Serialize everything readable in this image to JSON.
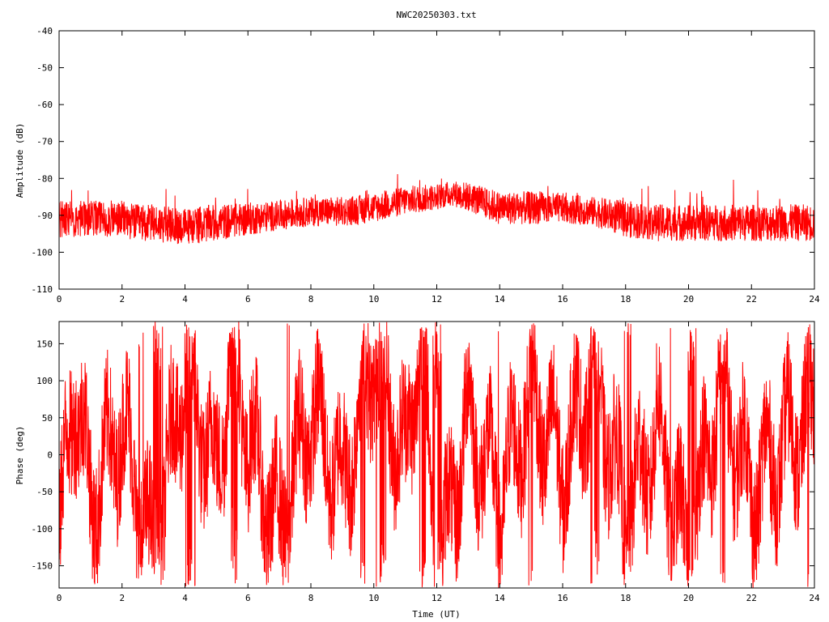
{
  "title": "NWC20250303.txt",
  "colors": {
    "trace": "#ff0000",
    "axis": "#000000",
    "background": "#ffffff"
  },
  "chart_data": [
    {
      "type": "line",
      "title": "NWC20250303.txt",
      "xlabel": "",
      "ylabel": "Amplitude (dB)",
      "xlim": [
        0,
        24
      ],
      "ylim": [
        -110,
        -40
      ],
      "x_ticks": [
        0,
        2,
        4,
        6,
        8,
        10,
        12,
        14,
        16,
        18,
        20,
        22,
        24
      ],
      "y_ticks": [
        -110,
        -100,
        -90,
        -80,
        -70,
        -60,
        -50,
        -40
      ],
      "grid": false,
      "series": [
        {
          "color": "#ff0000",
          "x": [
            0,
            1,
            2,
            2.5,
            3,
            3.75,
            4,
            5,
            6,
            7,
            8,
            9,
            10,
            11,
            12,
            12.5,
            13,
            14,
            15,
            16,
            17,
            18,
            19,
            20,
            21,
            22,
            23,
            24
          ],
          "y": [
            -91,
            -91,
            -91,
            -92,
            -92,
            -93,
            -93,
            -92,
            -91,
            -90,
            -89,
            -89,
            -88,
            -86,
            -85,
            -84,
            -85,
            -88,
            -88,
            -88,
            -89,
            -91,
            -92,
            -92,
            -92,
            -92,
            -92,
            -92
          ],
          "spread_db": [
            5,
            5,
            5,
            5,
            5,
            5,
            5,
            5,
            4.5,
            4,
            4,
            4,
            4,
            4,
            3.5,
            3.5,
            4,
            4.5,
            4.5,
            4,
            4,
            5,
            5,
            5,
            5,
            5,
            5,
            5
          ]
        }
      ]
    },
    {
      "type": "line",
      "xlabel": "Time (UT)",
      "ylabel": "Phase (deg)",
      "xlim": [
        0,
        24
      ],
      "ylim": [
        -180,
        180
      ],
      "x_ticks": [
        0,
        2,
        4,
        6,
        8,
        10,
        12,
        14,
        16,
        18,
        20,
        22,
        24
      ],
      "y_ticks": [
        -150,
        -100,
        -50,
        0,
        50,
        100,
        150
      ],
      "grid": false,
      "series": [
        {
          "color": "#ff0000",
          "wrap_range": [
            -180,
            180
          ],
          "x": [
            0,
            0.5,
            1,
            2,
            3,
            4,
            5,
            5.5,
            6,
            7,
            8,
            9,
            10,
            11,
            11.5,
            12,
            13,
            14,
            15,
            16,
            17,
            18,
            19,
            20,
            21,
            22,
            23,
            24
          ],
          "y": [
            -120,
            100,
            -60,
            40,
            -150,
            120,
            -30,
            160,
            20,
            -100,
            60,
            -40,
            140,
            -10,
            170,
            -170,
            50,
            -60,
            80,
            -20,
            120,
            -90,
            30,
            -140,
            90,
            -50,
            10,
            60
          ]
        }
      ]
    }
  ]
}
